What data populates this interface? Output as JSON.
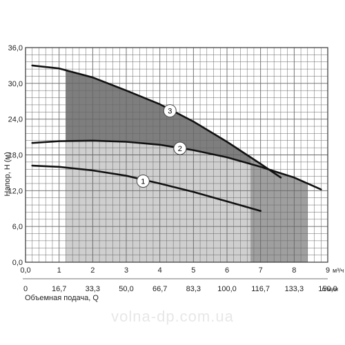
{
  "chart_data": {
    "type": "line",
    "ylabel": "Напор, H (м)",
    "xlabel": "Объемная подача, Q",
    "x_unit_primary": "м³/ч",
    "x_unit_secondary": "л/мин",
    "xlim": [
      0,
      9
    ],
    "ylim": [
      0,
      36
    ],
    "grid": true,
    "y_ticks": [
      "0,0",
      "6,0",
      "12,0",
      "18,0",
      "24,0",
      "30,0",
      "36,0"
    ],
    "y_tick_values": [
      0,
      6,
      12,
      18,
      24,
      30,
      36
    ],
    "x_ticks_primary": [
      "0,0",
      "1",
      "2",
      "3",
      "4",
      "5",
      "6",
      "7",
      "8",
      "9"
    ],
    "x_tick_values_primary": [
      0,
      1,
      2,
      3,
      4,
      5,
      6,
      7,
      8,
      9
    ],
    "x_ticks_secondary": [
      "0",
      "16,7",
      "33,3",
      "50,0",
      "66,7",
      "83,3",
      "100,0",
      "116,7",
      "133,3",
      "150,0"
    ],
    "x_tick_values_secondary": [
      0,
      1,
      2,
      3,
      4,
      5,
      6,
      7,
      8,
      9
    ],
    "series": [
      {
        "name": "1",
        "x": [
          0.2,
          1.0,
          2.0,
          3.0,
          4.0,
          5.0,
          6.0,
          7.0
        ],
        "y": [
          16.2,
          16.0,
          15.4,
          14.5,
          13.2,
          11.8,
          10.2,
          8.6
        ],
        "label_at": [
          3.5,
          13.6
        ]
      },
      {
        "name": "2",
        "x": [
          0.2,
          1.0,
          2.0,
          3.0,
          4.0,
          5.0,
          6.0,
          7.0,
          8.0,
          8.8
        ],
        "y": [
          20.0,
          20.3,
          20.4,
          20.2,
          19.7,
          18.8,
          17.6,
          16.0,
          14.2,
          12.2
        ],
        "label_at": [
          4.6,
          19.1
        ]
      },
      {
        "name": "3",
        "x": [
          0.2,
          1.0,
          2.0,
          3.0,
          4.0,
          5.0,
          6.0,
          7.0,
          7.6
        ],
        "y": [
          33.0,
          32.5,
          31.0,
          28.8,
          26.5,
          23.6,
          20.2,
          16.5,
          14.2
        ],
        "label_at": [
          4.3,
          25.4
        ]
      }
    ],
    "shaded_regions": [
      {
        "x": [
          1.2,
          6.7
        ],
        "color": "#cfcfcf"
      },
      {
        "x": [
          6.7,
          8.4
        ],
        "color": "#9f9f9f"
      }
    ]
  },
  "watermark": "volna-dp.com.ua"
}
